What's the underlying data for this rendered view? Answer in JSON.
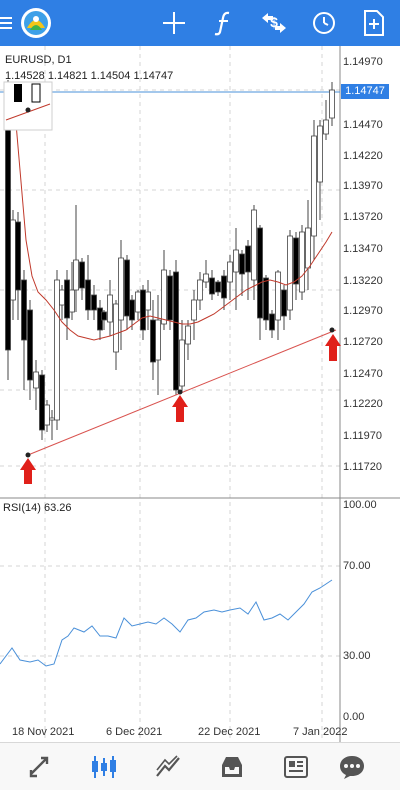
{
  "toolbar": {
    "icons": [
      "menu-icon",
      "app-logo-icon",
      "crosshair-icon",
      "indicator-icon",
      "symbol-icon",
      "history-icon",
      "new-chart-icon"
    ],
    "accent": "#2f7fe4"
  },
  "chart": {
    "symbol": "EURUSD, D1",
    "ohlc": "1.14528 1.14821 1.14504 1.14747",
    "current_price": "1.14747",
    "price_labels": [
      "1.14970",
      "1.14470",
      "1.14220",
      "1.13970",
      "1.13720",
      "1.13470",
      "1.13220",
      "1.12970",
      "1.12720",
      "1.12470",
      "1.12220",
      "1.11970",
      "1.11720"
    ],
    "date_labels": [
      "18 Nov 2021",
      "6 Dec 2021",
      "22 Dec 2021",
      "7 Jan 2022"
    ],
    "indicator_name": "RSI(14) 63.26",
    "rsi_levels": [
      "100.00",
      "70.00",
      "30.00",
      "0.00"
    ],
    "colors": {
      "bull": "#ffffff",
      "bear": "#000000",
      "ma": "#c0392b",
      "trend": "#d9534f",
      "rsi": "#4a90d9",
      "arrow": "#e0201a"
    }
  },
  "bottom_nav": {
    "icons": [
      "quotes-icon",
      "chart-icon",
      "trade-icon",
      "history-inbox-icon",
      "news-icon",
      "messages-icon"
    ],
    "active": "chart-icon",
    "active_color": "#2f7fe4",
    "inactive_color": "#555555"
  }
}
